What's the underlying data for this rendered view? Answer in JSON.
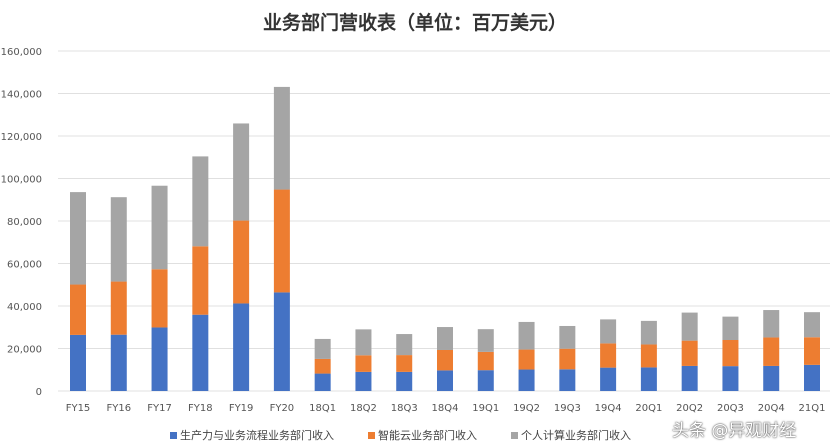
{
  "chart_data": {
    "type": "bar",
    "stacked": true,
    "title": "业务部门营收表（单位：百万美元）",
    "xlabel": "",
    "ylabel": "",
    "ylim": [
      0,
      160000
    ],
    "yticks": [
      0,
      20000,
      40000,
      60000,
      80000,
      100000,
      120000,
      140000,
      160000
    ],
    "ytick_labels": [
      "0",
      "20,000",
      "40,000",
      "60,000",
      "80,000",
      "100,000",
      "120,000",
      "140,000",
      "160,000"
    ],
    "grid": true,
    "legend_position": "bottom",
    "categories": [
      "FY15",
      "FY16",
      "FY17",
      "FY18",
      "FY19",
      "FY20",
      "18Q1",
      "18Q2",
      "18Q3",
      "18Q4",
      "19Q1",
      "19Q2",
      "19Q3",
      "19Q4",
      "20Q1",
      "20Q2",
      "20Q3",
      "20Q4",
      "21Q1"
    ],
    "series": [
      {
        "name": "生产力与业务流程业务部门收入",
        "color": "#4472C4",
        "values": [
          26400,
          26500,
          29900,
          35900,
          41200,
          46400,
          8200,
          9000,
          9000,
          9700,
          9800,
          10100,
          10200,
          11000,
          11100,
          11800,
          11700,
          11800,
          12300
        ]
      },
      {
        "name": "智能云业务部门收入",
        "color": "#ED7D31",
        "values": [
          23700,
          25000,
          27400,
          32200,
          39000,
          48400,
          6900,
          7800,
          7900,
          9600,
          8600,
          9400,
          9700,
          11400,
          10800,
          11900,
          12300,
          13400,
          13000
        ]
      },
      {
        "name": "个人计算业务部门收入",
        "color": "#A5A5A5",
        "values": [
          43500,
          39700,
          39300,
          42300,
          45700,
          48300,
          9400,
          12200,
          9900,
          10800,
          10700,
          13000,
          10700,
          11300,
          11100,
          13200,
          11000,
          12900,
          11800
        ]
      }
    ]
  },
  "watermark": "头条 @异观财经"
}
